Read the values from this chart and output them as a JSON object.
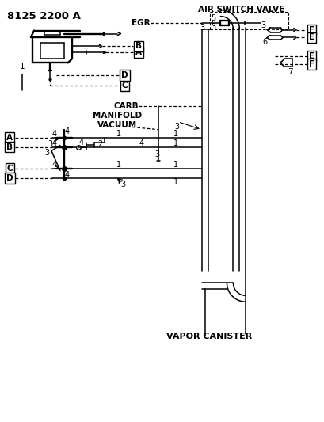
{
  "title": "8125 2200 A",
  "bg_color": "#ffffff",
  "line_color": "#000000",
  "labels": {
    "air_switch_valve": "AIR SWITCH VALVE",
    "egr": "EGR",
    "carb": "CARB",
    "manifold_vacuum": "MANIFOLD\nVACUUM",
    "vapor_canister": "VAPOR CANISTER"
  },
  "figsize": [
    4.1,
    5.33
  ],
  "dpi": 100
}
